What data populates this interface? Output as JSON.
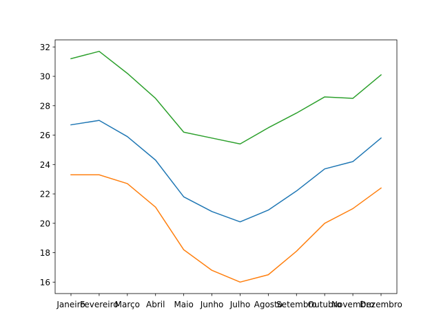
{
  "chart_data": {
    "type": "line",
    "categories": [
      "Janeiro",
      "Fevereiro",
      "Março",
      "Abril",
      "Maio",
      "Junho",
      "Julho",
      "Agosto",
      "Setembro",
      "Outubro",
      "Novembro",
      "Dezembro"
    ],
    "series": [
      {
        "color": "#1f77b4",
        "values": [
          26.7,
          27.0,
          25.9,
          24.3,
          21.8,
          20.8,
          20.1,
          20.9,
          22.2,
          23.7,
          24.2,
          25.8
        ]
      },
      {
        "color": "#ff7f0e",
        "values": [
          23.3,
          23.3,
          22.7,
          21.1,
          18.2,
          16.8,
          16.0,
          16.5,
          18.1,
          20.0,
          21.0,
          22.4
        ]
      },
      {
        "color": "#2ca02c",
        "values": [
          31.2,
          31.7,
          30.2,
          28.5,
          26.2,
          25.8,
          25.4,
          26.5,
          27.5,
          28.6,
          28.5,
          30.1
        ]
      }
    ],
    "yticks": [
      16,
      18,
      20,
      22,
      24,
      26,
      28,
      30,
      32
    ],
    "ylim": [
      15.22,
      32.48
    ],
    "grid": false,
    "title": "",
    "xlabel": "",
    "ylabel": ""
  }
}
